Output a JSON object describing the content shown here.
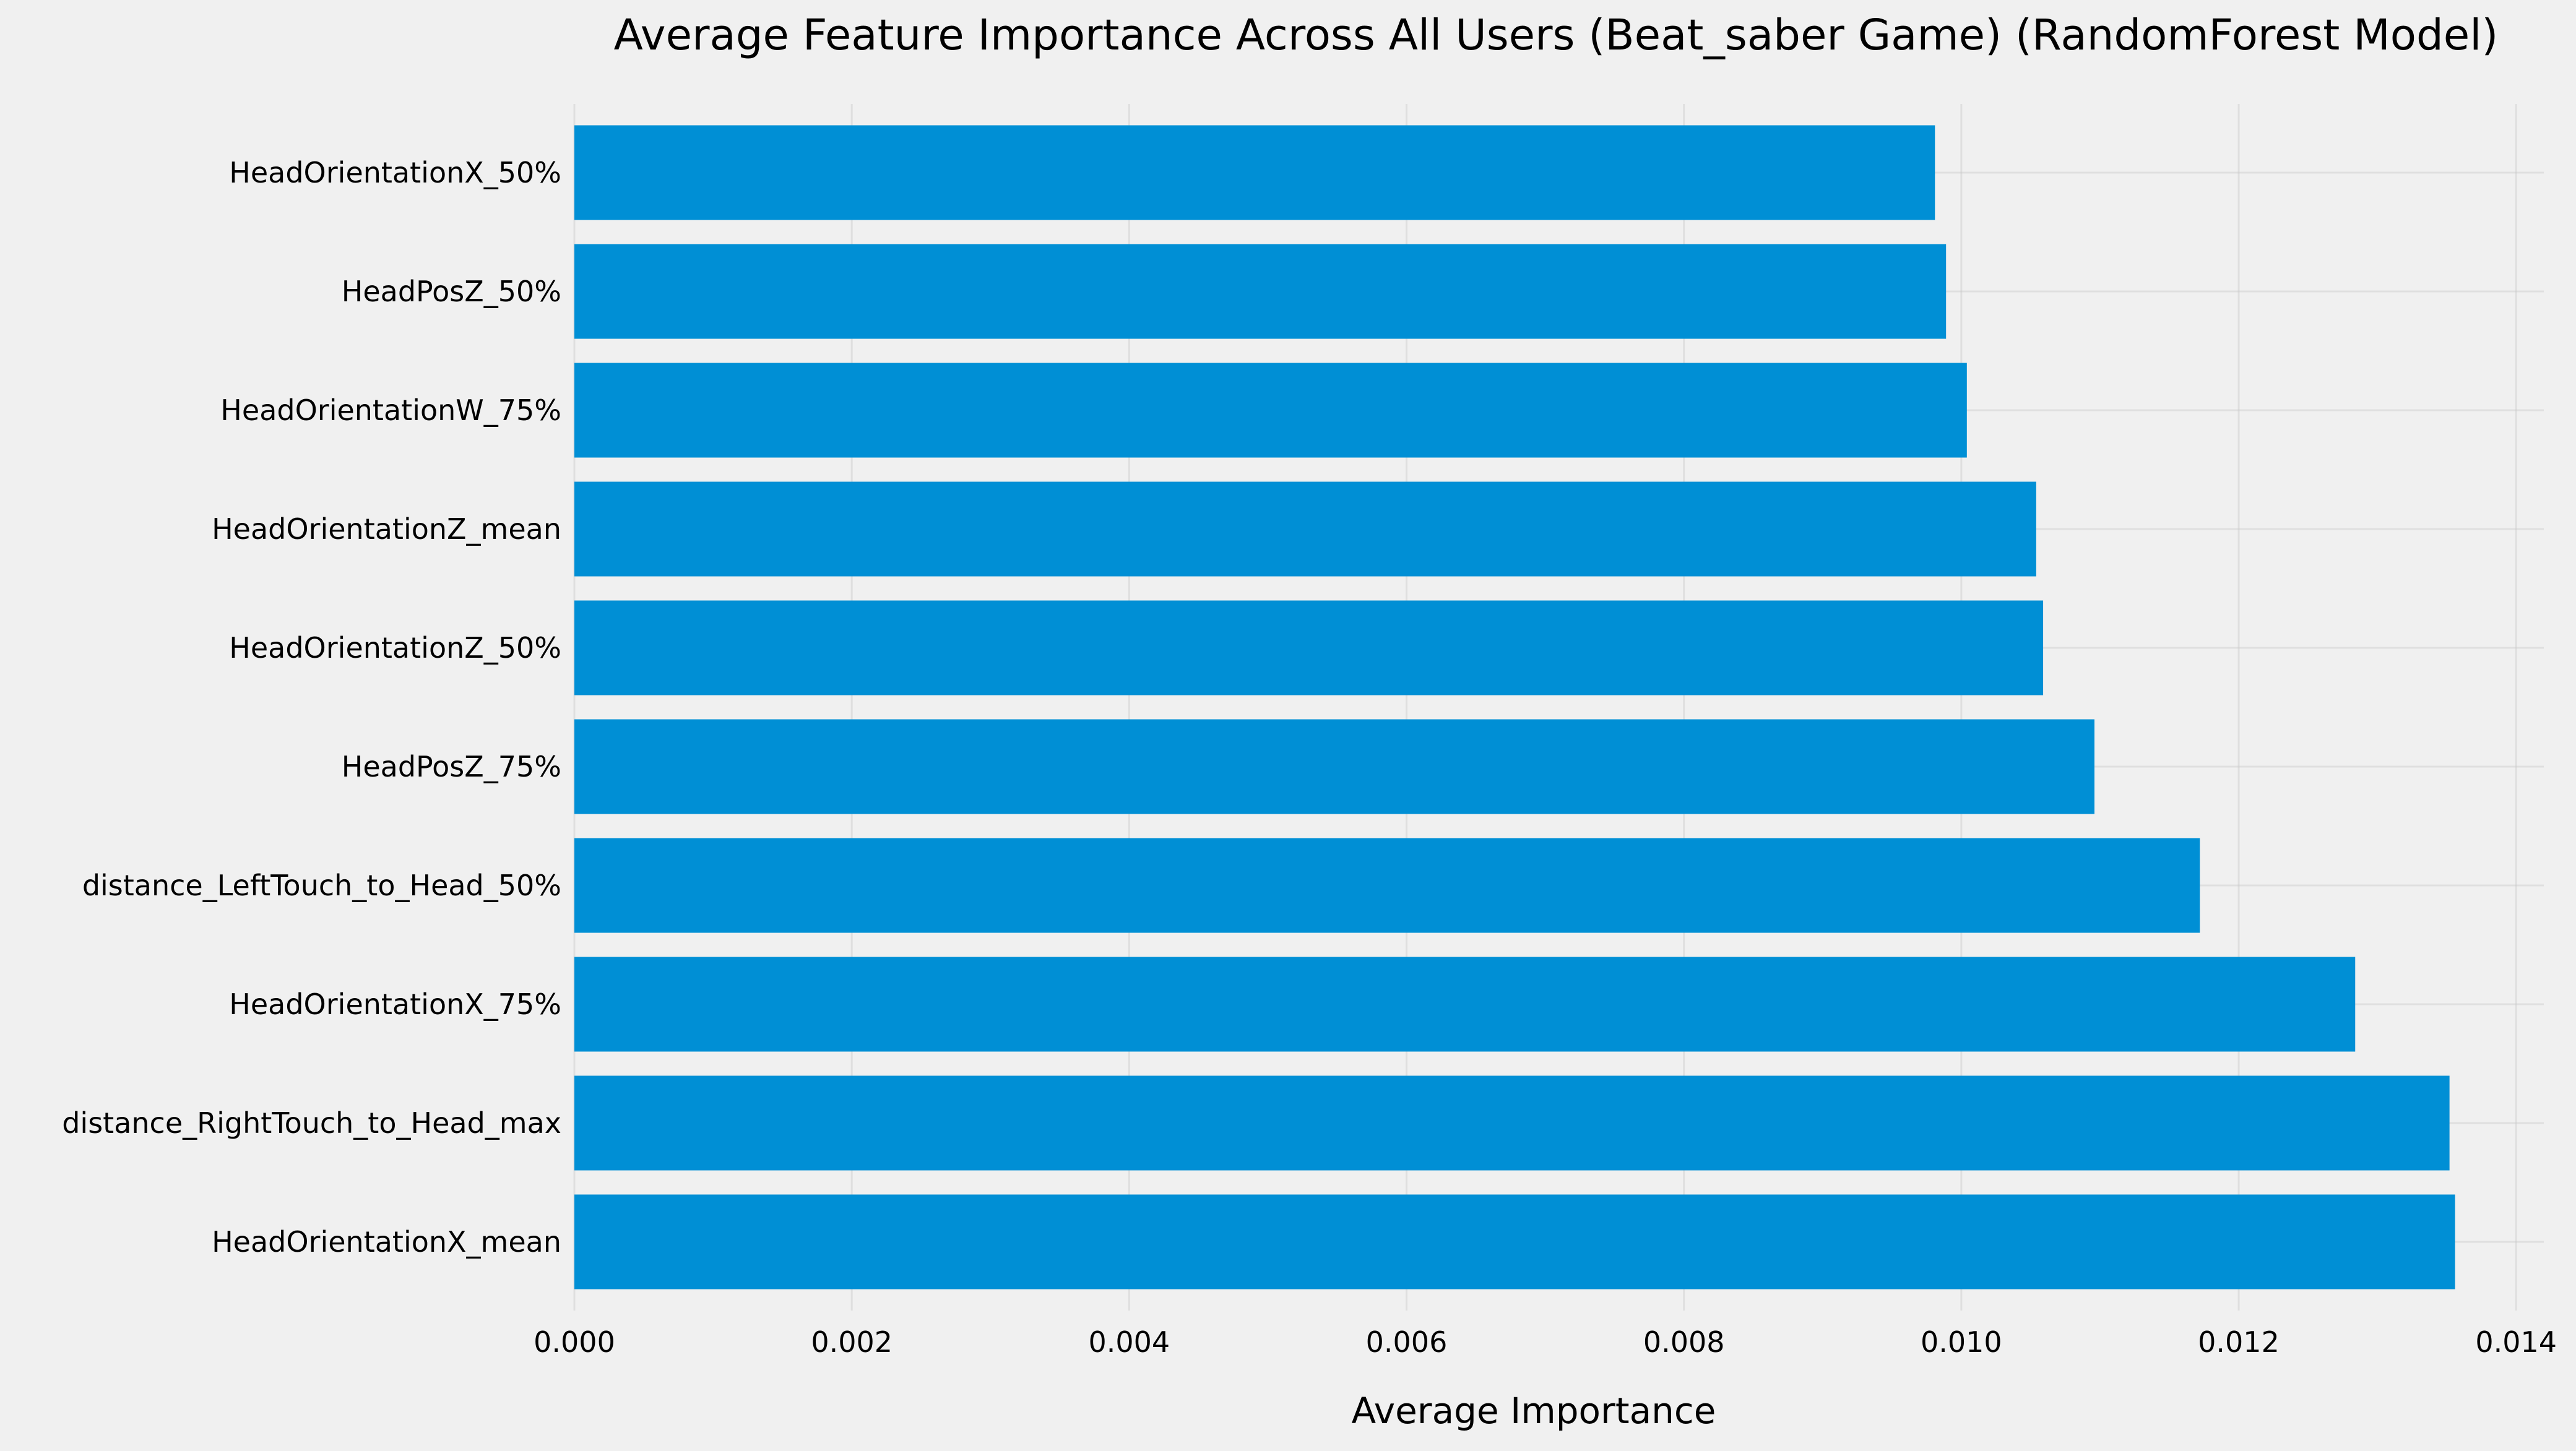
{
  "chart_data": {
    "type": "bar",
    "orientation": "horizontal",
    "title": "Average Feature Importance Across All Users (Beat_saber Game) (RandomForest Model)",
    "xlabel": "Average Importance",
    "ylabel": "",
    "categories": [
      "HeadOrientationX_mean",
      "distance_RightTouch_to_Head_max",
      "HeadOrientationX_75%",
      "distance_LeftTouch_to_Head_50%",
      "HeadPosZ_75%",
      "HeadOrientationZ_50%",
      "HeadOrientationZ_mean",
      "HeadOrientationW_75%",
      "HeadPosZ_50%",
      "HeadOrientationX_50%"
    ],
    "values": [
      0.01356,
      0.01352,
      0.01284,
      0.01172,
      0.01096,
      0.01059,
      0.01054,
      0.01004,
      0.00989,
      0.00981
    ],
    "xlim": [
      0,
      0.0142
    ],
    "xticks": [
      "0.000",
      "0.002",
      "0.004",
      "0.006",
      "0.008",
      "0.010",
      "0.012",
      "0.014"
    ],
    "xtick_values": [
      0,
      0.002,
      0.004,
      0.006,
      0.008,
      0.01,
      0.012,
      0.014
    ],
    "grid": true,
    "bar_color": "#008fd5",
    "background": "#f0f0f0",
    "grid_color": "#cbcbcb"
  }
}
